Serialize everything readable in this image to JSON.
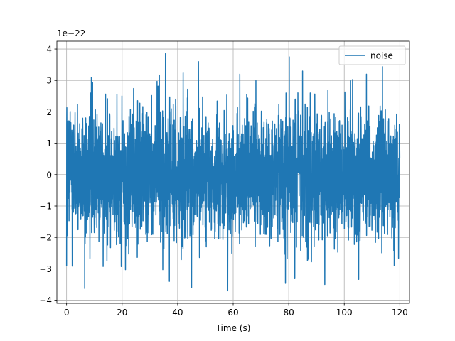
{
  "chart_data": {
    "type": "line",
    "title": "",
    "xlabel": "Time (s)",
    "ylabel": "",
    "y_scale_label": "1e−22",
    "xlim": [
      -3.5,
      123.5
    ],
    "ylim": [
      -4.1,
      4.25
    ],
    "xticks": [
      0,
      20,
      40,
      60,
      80,
      100,
      120
    ],
    "yticks": [
      -4,
      -3,
      -2,
      -1,
      0,
      1,
      2,
      3,
      4
    ],
    "ytick_labels": [
      "−4",
      "−3",
      "−2",
      "−1",
      "0",
      "1",
      "2",
      "3",
      "4"
    ],
    "grid": true,
    "legend": {
      "position": "upper-right",
      "entries": [
        "noise"
      ]
    },
    "series": [
      {
        "name": "noise",
        "color": "#1f77b4",
        "x_range": [
          0,
          120
        ],
        "y_range_approx": [
          -3.7,
          3.85
        ],
        "typical_envelope": [
          -2.2,
          2.2
        ],
        "note_values_in": "units of 1e-22",
        "extreme_peaks": [
          {
            "x": 35.6,
            "y": 3.85
          },
          {
            "x": 80.2,
            "y": 3.75
          },
          {
            "x": 62.4,
            "y": 3.2
          },
          {
            "x": 47.5,
            "y": 3.6
          },
          {
            "x": 85.0,
            "y": 3.3
          },
          {
            "x": 108.0,
            "y": 3.2
          },
          {
            "x": 45.0,
            "y": -3.6
          },
          {
            "x": 58.0,
            "y": -3.7
          },
          {
            "x": 93.0,
            "y": -3.5
          },
          {
            "x": 37.0,
            "y": -3.4
          },
          {
            "x": 118.0,
            "y": -2.9
          },
          {
            "x": 0.0,
            "y": -2.9
          }
        ]
      }
    ]
  }
}
